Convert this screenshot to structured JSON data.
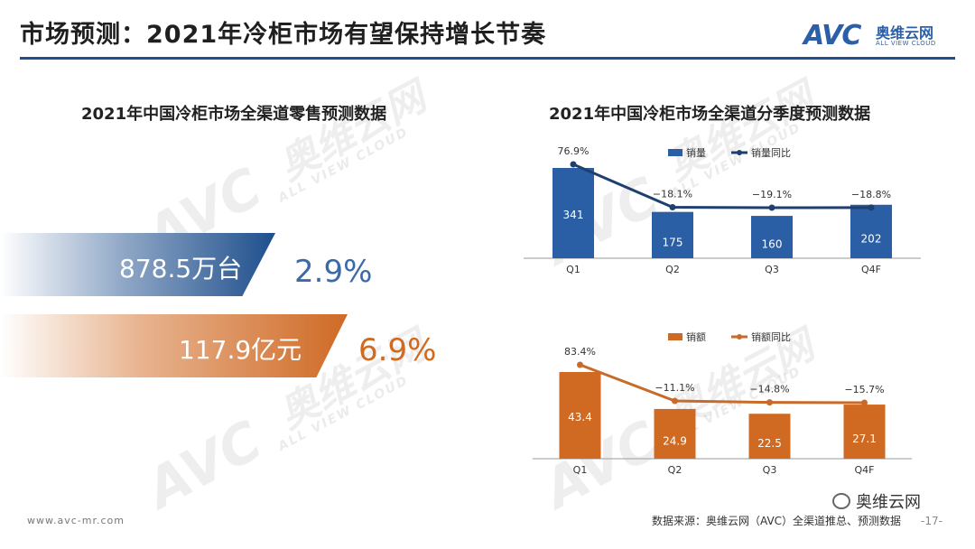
{
  "header": {
    "title": "市场预测：2021年冷柜市场有望保持增长节奏",
    "logo_mark": "AVC",
    "logo_cn": "奥维云网",
    "logo_en": "ALL VIEW CLOUD"
  },
  "left_panel": {
    "heading": "2021年中国冷柜市场全渠道零售预测数据",
    "kpis": [
      {
        "value": "878.5万台",
        "growth": "2.9%",
        "color": "#1e4f8c",
        "growth_color": "#3a6aa8"
      },
      {
        "value": "117.9亿元",
        "growth": "6.9%",
        "color": "#cf6a25",
        "growth_color": "#d2691e"
      }
    ]
  },
  "right_panel": {
    "heading": "2021年中国冷柜市场全渠道分季度预测数据"
  },
  "chart_data": [
    {
      "type": "bar",
      "categories": [
        "Q1",
        "Q2",
        "Q3",
        "Q4F"
      ],
      "series": [
        {
          "name": "销量",
          "kind": "bar",
          "values": [
            341,
            175,
            160,
            202
          ],
          "labels": [
            "341",
            "175",
            "160",
            "202"
          ],
          "color": "#2a5fa5"
        },
        {
          "name": "销量同比",
          "kind": "line",
          "values": [
            76.9,
            -18.1,
            -19.1,
            -18.8
          ],
          "labels": [
            "76.9%",
            "-18.1%",
            "-19.1%",
            "-18.8%"
          ],
          "color": "#1f3f6e"
        }
      ]
    },
    {
      "type": "bar",
      "categories": [
        "Q1",
        "Q2",
        "Q3",
        "Q4F"
      ],
      "series": [
        {
          "name": "销额",
          "kind": "bar",
          "values": [
            43.4,
            24.9,
            22.5,
            27.1
          ],
          "labels": [
            "43.4",
            "24.9",
            "22.5",
            "27.1"
          ],
          "color": "#d06a22"
        },
        {
          "name": "销额同比",
          "kind": "line",
          "values": [
            83.4,
            -11.1,
            -14.8,
            -15.7
          ],
          "labels": [
            "83.4%",
            "-11.1%",
            "-14.8%",
            "-15.7%"
          ],
          "color": "#c86a2a"
        }
      ]
    }
  ],
  "watermark": {
    "mark": "AVC",
    "cn": "奥维云网",
    "en": "ALL VIEW CLOUD"
  },
  "footer": {
    "website": "www.avc-mr.com",
    "source": "数据来源：奥维云网（AVC）全渠道推总、预测数据",
    "page": "-17-",
    "wechat": "奥维云网"
  }
}
